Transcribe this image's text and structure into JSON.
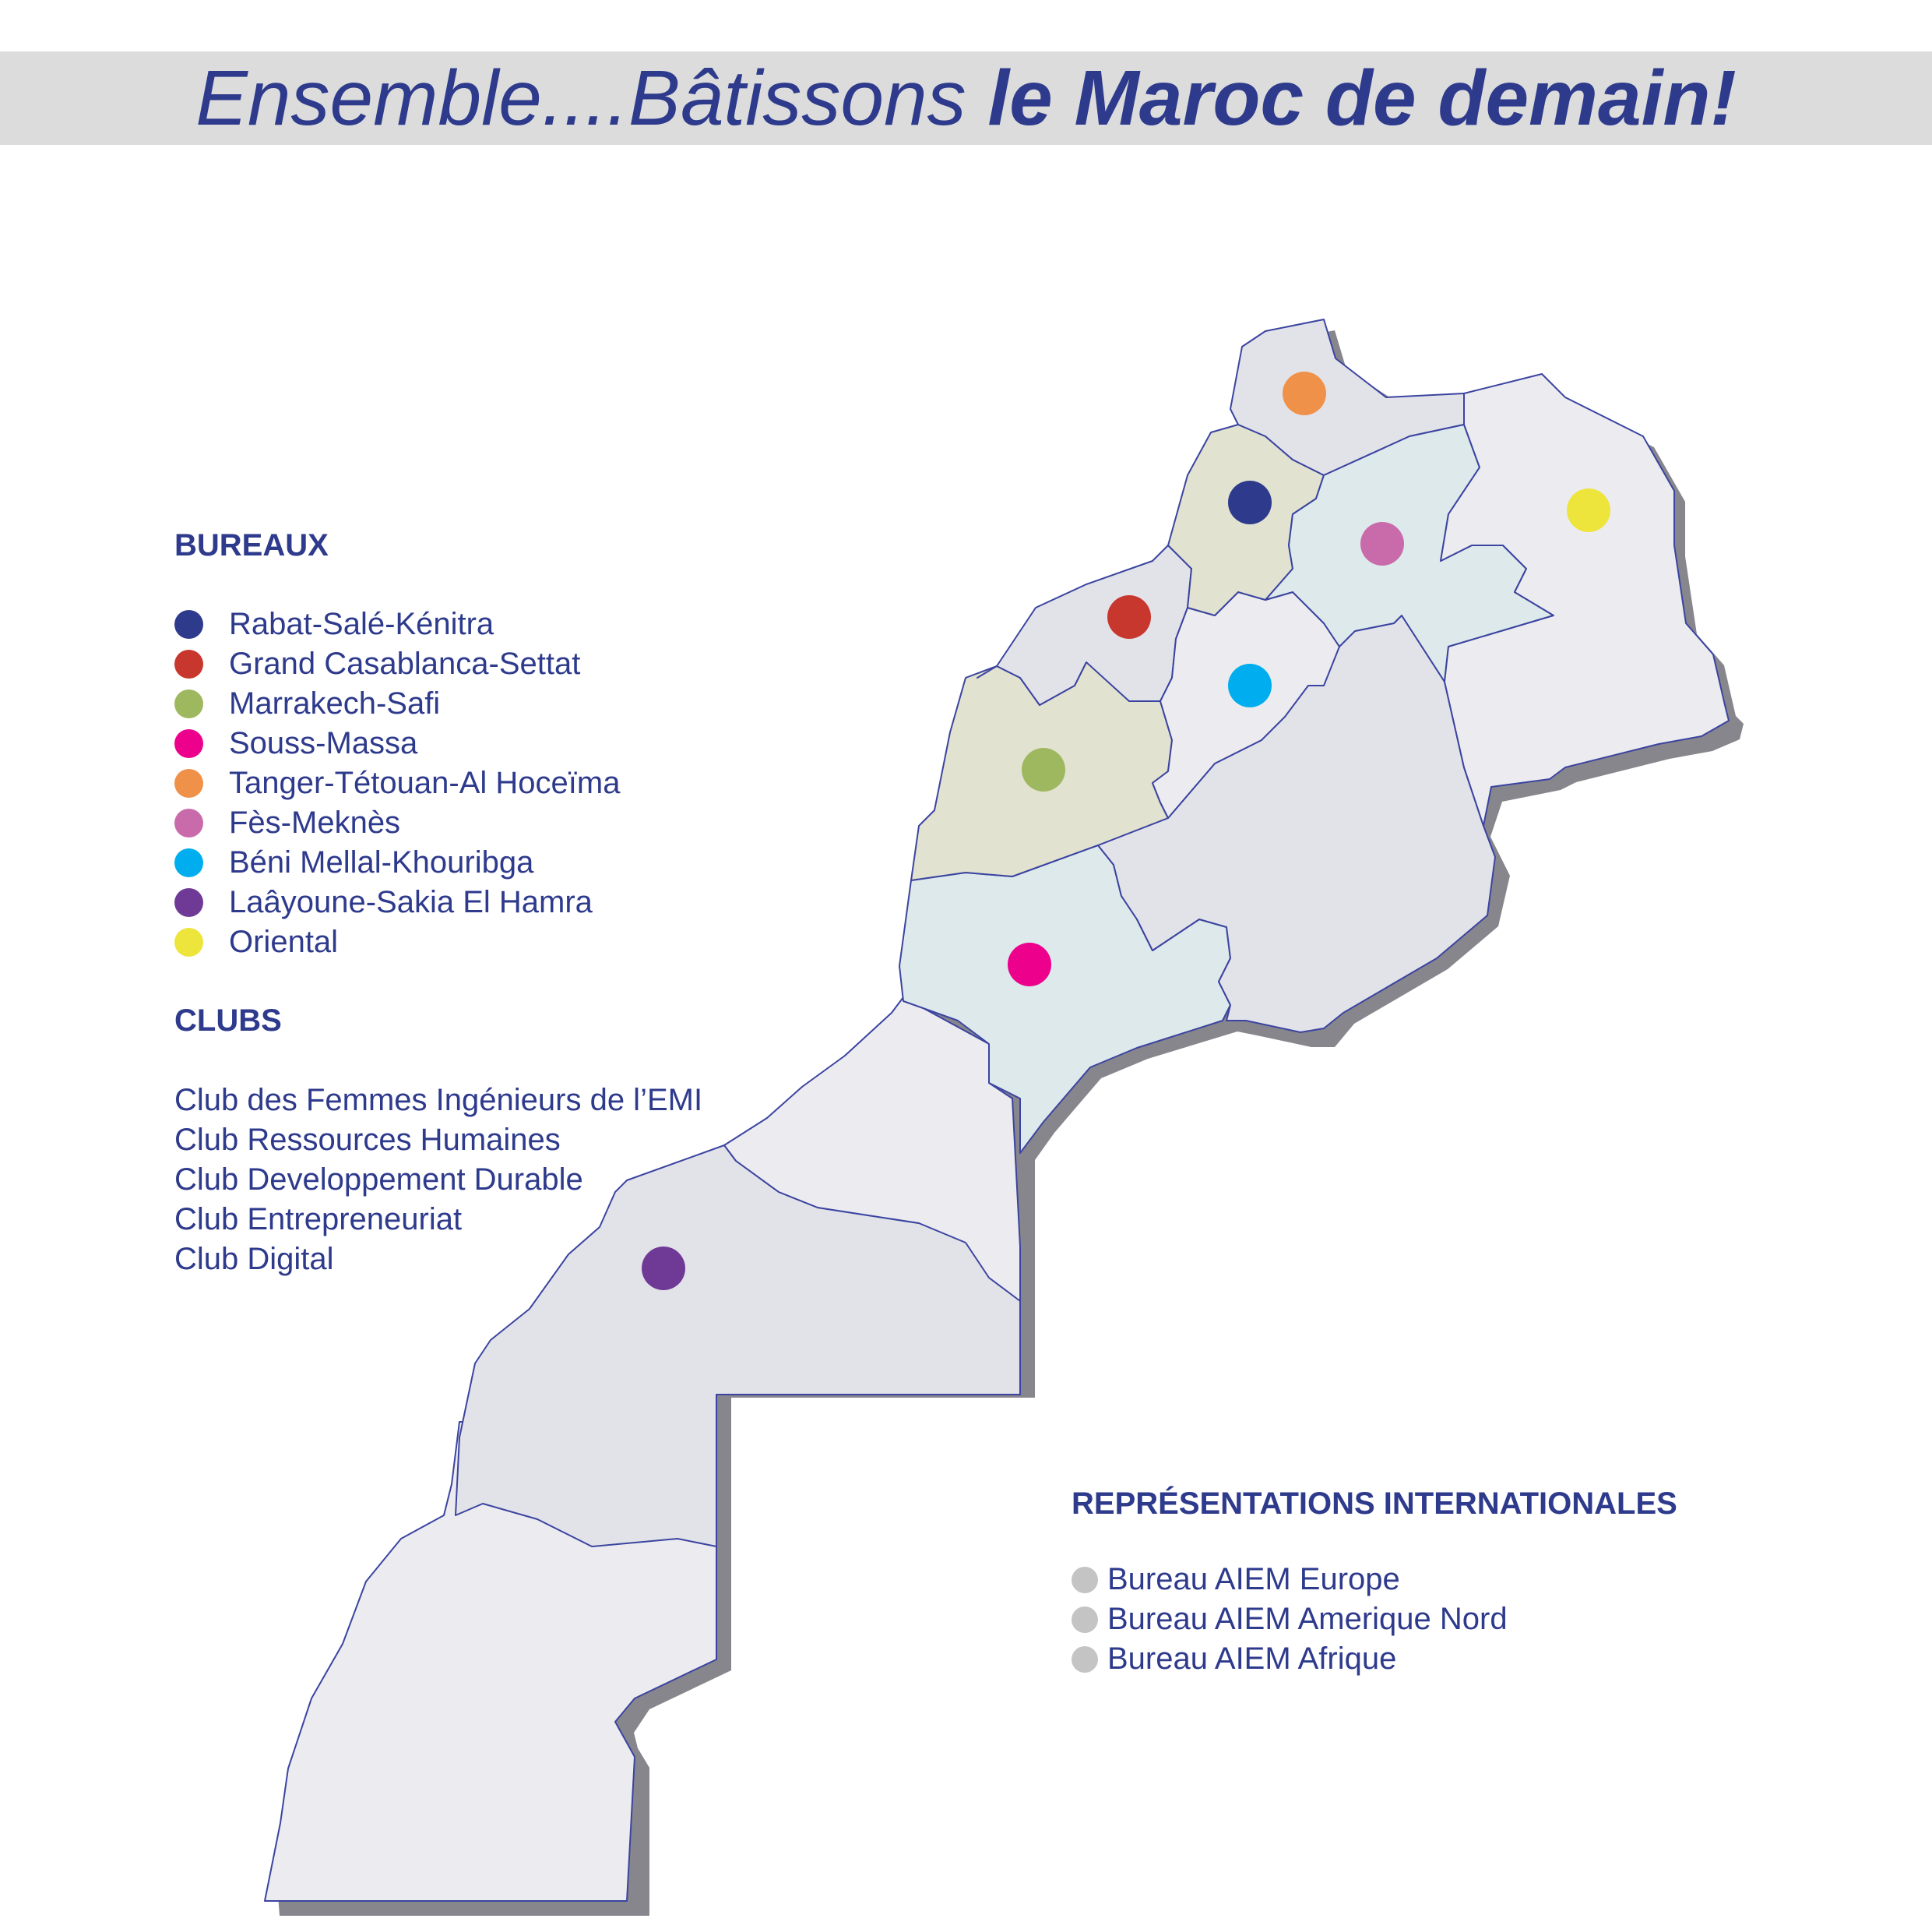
{
  "header": {
    "title_light": "Ensemble....Bâtissons ",
    "title_bold": "le Maroc de demain!"
  },
  "bureaux": {
    "heading": "BUREAUX",
    "items": [
      {
        "label": "Rabat-Salé-Kénitra",
        "color": "#2e3a8c"
      },
      {
        "label": "Grand Casablanca-Settat",
        "color": "#c8372d"
      },
      {
        "label": "Marrakech-Safi",
        "color": "#9eb85f"
      },
      {
        "label": "Souss-Massa",
        "color": "#ec008c"
      },
      {
        "label": "Tanger-Tétouan-Al Hoceïma",
        "color": "#f0914a"
      },
      {
        "label": "Fès-Meknès",
        "color": "#c96bab"
      },
      {
        "label": "Béni Mellal-Khouribga",
        "color": "#00aeef"
      },
      {
        "label": "Laâyoune-Sakia El Hamra",
        "color": "#6f3a96"
      },
      {
        "label": "Oriental",
        "color": "#ede43c"
      }
    ]
  },
  "clubs": {
    "heading": "CLUBS",
    "items": [
      "Club des Femmes Ingénieurs de l’EMI",
      "Club Ressources Humaines",
      "Club Developpement Durable",
      "Club Entrepreneuriat",
      "Club Digital"
    ]
  },
  "international": {
    "heading": "REPRÉSENTATIONS INTERNATIONALES",
    "dot_color": "#c4c4c4",
    "items": [
      "Bureau AIEM Europe",
      "Bureau AIEM Amerique Nord",
      "Bureau AIEM Afrique"
    ]
  },
  "map": {
    "region_fill_colors": {
      "default": "#ececf0",
      "darker": "#e2e3e9",
      "olive": "#e1e2d0",
      "teal": "#dde9ea",
      "shadow": "#87868d",
      "border": "#3b44a0"
    }
  }
}
